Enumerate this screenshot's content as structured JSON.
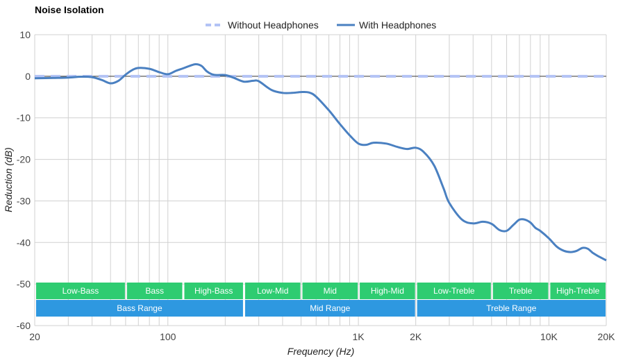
{
  "chart_data": {
    "type": "line",
    "title": "Noise Isolation",
    "xlabel": "Frequency (Hz)",
    "ylabel": "Reduction (dB)",
    "x_scale": "log",
    "xlim": [
      20,
      20000
    ],
    "ylim": [
      -60,
      10
    ],
    "x_ticks": [
      {
        "value": 20,
        "label": "20"
      },
      {
        "value": 100,
        "label": "100"
      },
      {
        "value": 1000,
        "label": "1K"
      },
      {
        "value": 2000,
        "label": "2K"
      },
      {
        "value": 10000,
        "label": "10K"
      },
      {
        "value": 20000,
        "label": "20K"
      }
    ],
    "y_ticks": [
      {
        "value": 10,
        "label": "10"
      },
      {
        "value": 0,
        "label": "0"
      },
      {
        "value": -10,
        "label": "-10"
      },
      {
        "value": -20,
        "label": "-20"
      },
      {
        "value": -30,
        "label": "-30"
      },
      {
        "value": -40,
        "label": "-40"
      },
      {
        "value": -50,
        "label": "-50"
      },
      {
        "value": -60,
        "label": "-60"
      }
    ],
    "grid": true,
    "legend_position": "top-center",
    "series": [
      {
        "name": "Without Headphones",
        "color": "#b3c3f5",
        "style": "dashed",
        "x": [
          20,
          20000
        ],
        "y": [
          0,
          0
        ]
      },
      {
        "name": "With Headphones",
        "color": "#4a80c1",
        "style": "solid",
        "x": [
          20,
          25,
          30,
          35,
          40,
          45,
          50,
          55,
          60,
          65,
          70,
          80,
          90,
          100,
          110,
          120,
          130,
          140,
          150,
          160,
          170,
          180,
          200,
          220,
          250,
          280,
          300,
          350,
          400,
          450,
          500,
          550,
          600,
          700,
          800,
          900,
          1000,
          1100,
          1200,
          1400,
          1600,
          1800,
          2000,
          2200,
          2500,
          2800,
          3000,
          3500,
          4000,
          4500,
          5000,
          5500,
          6000,
          6500,
          7000,
          7500,
          8000,
          8500,
          9000,
          10000,
          11000,
          12000,
          13000,
          14000,
          15000,
          16000,
          17000,
          18000,
          20000
        ],
        "y": [
          -0.5,
          -0.4,
          -0.3,
          -0.1,
          -0.2,
          -0.9,
          -1.7,
          -1.1,
          0.4,
          1.5,
          2.0,
          1.8,
          1.0,
          0.5,
          1.3,
          1.9,
          2.5,
          2.9,
          2.5,
          1.2,
          0.5,
          0.3,
          0.3,
          -0.3,
          -1.3,
          -1.1,
          -1.2,
          -3.3,
          -4.0,
          -4.0,
          -3.8,
          -3.9,
          -4.9,
          -8.2,
          -11.5,
          -14.2,
          -16.2,
          -16.5,
          -16.0,
          -16.2,
          -17.0,
          -17.5,
          -17.2,
          -18.2,
          -21.5,
          -27.0,
          -30.5,
          -34.5,
          -35.4,
          -35.0,
          -35.5,
          -37.0,
          -37.2,
          -35.8,
          -34.5,
          -34.5,
          -35.2,
          -36.5,
          -37.2,
          -39.0,
          -41.0,
          -42.0,
          -42.3,
          -42.0,
          -41.3,
          -41.5,
          -42.5,
          -43.2,
          -44.3
        ]
      }
    ],
    "range_bands_upper": [
      {
        "label": "Low-Bass",
        "from": 20,
        "to": 60
      },
      {
        "label": "Bass",
        "from": 60,
        "to": 120
      },
      {
        "label": "High-Bass",
        "from": 120,
        "to": 250
      },
      {
        "label": "Low-Mid",
        "from": 250,
        "to": 500
      },
      {
        "label": "Mid",
        "from": 500,
        "to": 1000
      },
      {
        "label": "High-Mid",
        "from": 1000,
        "to": 2000
      },
      {
        "label": "Low-Treble",
        "from": 2000,
        "to": 5000
      },
      {
        "label": "Treble",
        "from": 5000,
        "to": 10000
      },
      {
        "label": "High-Treble",
        "from": 10000,
        "to": 20000
      }
    ],
    "range_bands_lower": [
      {
        "label": "Bass Range",
        "from": 20,
        "to": 250
      },
      {
        "label": "Mid Range",
        "from": 250,
        "to": 2000
      },
      {
        "label": "Treble Range",
        "from": 2000,
        "to": 20000
      }
    ]
  },
  "colors": {
    "upper_band": "#2ecc71",
    "lower_band": "#2e98e0",
    "grid": "#d0d0d0",
    "zero_line": "#333333"
  }
}
